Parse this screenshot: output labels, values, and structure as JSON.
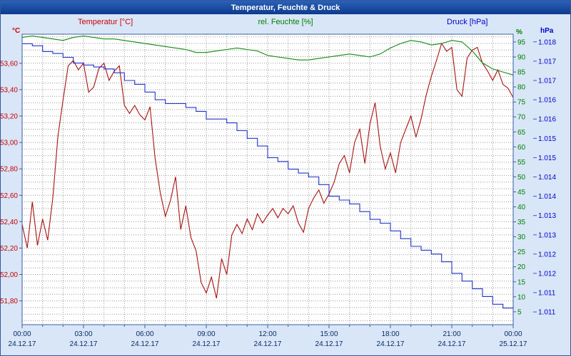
{
  "window": {
    "title": "Temperatur, Feuchte & Druck"
  },
  "legend": {
    "temperature": "Temperatur [°C]",
    "humidity": "rel. Feuchte [%]",
    "pressure": "Druck [hPa]"
  },
  "units": {
    "temperature": "°C",
    "humidity": "%",
    "pressure": "hPa"
  },
  "colors": {
    "background": "#d9e6f7",
    "titlebar": "#0e3a8c",
    "plot_background": "#ffffff",
    "plot_border": "#3a5fa0",
    "grid": "#9a9a9a",
    "temperature": "#aa1111",
    "humidity": "#0f8a0f",
    "pressure": "#2233cc",
    "x_labels": "#0a2a66"
  },
  "chart_data": {
    "type": "line",
    "title": "Temperatur, Feuchte & Druck",
    "x_axis": {
      "range_hours": [
        0,
        24
      ],
      "minor_gridline_every_hours": 1,
      "major_tick_hours": [
        0,
        3,
        6,
        9,
        12,
        15,
        18,
        21,
        24
      ],
      "tick_times": [
        "00:00",
        "03:00",
        "06:00",
        "09:00",
        "12:00",
        "15:00",
        "18:00",
        "21:00",
        "00:00"
      ],
      "tick_dates": [
        "24.12.17",
        "24.12.17",
        "24.12.17",
        "24.12.17",
        "24.12.17",
        "24.12.17",
        "24.12.17",
        "24.12.17",
        "25.12.17"
      ]
    },
    "y_axes": {
      "temperature": {
        "unit": "°C",
        "color": "#cc0000",
        "range": [
          51.62,
          53.82
        ],
        "minor_gridline_step": 0.05,
        "tick_values": [
          53.6,
          53.4,
          53.2,
          53.0,
          52.8,
          52.6,
          52.4,
          52.2,
          52.0,
          51.8
        ],
        "tick_labels": [
          "53,60",
          "53,40",
          "53,20",
          "53,00",
          "52,80",
          "52,60",
          "52,40",
          "52,20",
          "52,00",
          "51,80"
        ]
      },
      "humidity": {
        "unit": "%",
        "color": "#008000",
        "range": [
          0.7,
          97.6
        ],
        "tick_values": [
          95,
          90,
          85,
          80,
          75,
          70,
          65,
          60,
          55,
          50,
          45,
          40,
          35,
          30,
          25,
          20,
          15,
          10,
          5
        ],
        "tick_labels": [
          "95",
          "90",
          "85",
          "80",
          "75",
          "70",
          "65",
          "60",
          "55",
          "50",
          "45",
          "40",
          "35",
          "30",
          "25",
          "20",
          "15",
          "10",
          "5"
        ]
      },
      "pressure": {
        "unit": "hPa",
        "color": "#0000cc",
        "range": [
          1.01067,
          1.0182
        ],
        "tick_values": [
          1.018,
          1.0175,
          1.017,
          1.0165,
          1.016,
          1.0155,
          1.015,
          1.0145,
          1.014,
          1.0135,
          1.013,
          1.0125,
          1.012,
          1.0115,
          1.011
        ],
        "tick_labels": [
          "1.018",
          "1.017",
          "1.017",
          "1.016",
          "1.016",
          "1.015",
          "1.015",
          "1.014",
          "1.014",
          "1.013",
          "1.013",
          "1.012",
          "1.012",
          "1.011",
          "1.011"
        ]
      }
    },
    "series": [
      {
        "name": "Temperatur",
        "axis": "temperature",
        "color": "#aa1111",
        "start_hour": 0,
        "interval_hours": 0.25,
        "mode": "linear",
        "values": [
          52.38,
          52.2,
          52.55,
          52.22,
          52.42,
          52.26,
          52.58,
          53.05,
          53.32,
          53.58,
          53.62,
          53.55,
          53.6,
          53.38,
          53.42,
          53.56,
          53.6,
          53.47,
          53.54,
          53.58,
          53.28,
          53.22,
          53.28,
          53.21,
          53.17,
          53.27,
          52.88,
          52.62,
          52.44,
          52.56,
          52.74,
          52.34,
          52.52,
          52.28,
          52.18,
          51.94,
          51.86,
          51.98,
          51.82,
          52.12,
          52.0,
          52.3,
          52.38,
          52.31,
          52.42,
          52.34,
          52.46,
          52.39,
          52.45,
          52.5,
          52.43,
          52.5,
          52.46,
          52.52,
          52.39,
          52.32,
          52.5,
          52.58,
          52.64,
          52.54,
          52.61,
          52.7,
          52.84,
          52.9,
          52.77,
          53.0,
          53.1,
          52.84,
          53.14,
          53.3,
          52.97,
          52.8,
          52.92,
          52.77,
          53.0,
          53.1,
          53.2,
          53.04,
          53.18,
          53.36,
          53.5,
          53.62,
          53.75,
          53.69,
          53.72,
          53.4,
          53.35,
          53.64,
          53.7,
          53.72,
          53.6,
          53.54,
          53.47,
          53.55,
          53.44,
          53.41,
          53.34
        ]
      },
      {
        "name": "rel. Feuchte",
        "axis": "humidity",
        "color": "#0f8a0f",
        "start_hour": 0,
        "interval_hours": 0.5,
        "mode": "linear",
        "values": [
          96.5,
          97,
          96.5,
          96,
          95.5,
          96.5,
          97,
          96.5,
          96,
          96,
          95.5,
          95,
          94.5,
          94,
          93.5,
          93,
          92.5,
          91.5,
          91.5,
          92,
          92.5,
          93,
          92.5,
          92,
          90.5,
          90,
          89.5,
          89,
          89,
          89.5,
          90,
          90.5,
          91,
          90.5,
          90,
          91,
          93,
          94.5,
          95.5,
          95,
          94,
          94.5,
          95.5,
          95,
          92,
          88,
          86,
          85,
          84
        ]
      },
      {
        "name": "Druck",
        "axis": "pressure",
        "color": "#2233cc",
        "start_hour": 0,
        "interval_hours": 0.5,
        "mode": "step",
        "values": [
          1.01795,
          1.0179,
          1.01775,
          1.0177,
          1.0176,
          1.01745,
          1.0174,
          1.01735,
          1.0173,
          1.0172,
          1.017,
          1.0169,
          1.0167,
          1.0165,
          1.0164,
          1.0164,
          1.0163,
          1.0162,
          1.016,
          1.016,
          1.0159,
          1.0157,
          1.0155,
          1.0153,
          1.015,
          1.0149,
          1.0147,
          1.0146,
          1.0145,
          1.0143,
          1.014,
          1.0139,
          1.0138,
          1.0136,
          1.0134,
          1.0133,
          1.0131,
          1.0129,
          1.0127,
          1.0126,
          1.0125,
          1.0123,
          1.012,
          1.0118,
          1.0116,
          1.0114,
          1.0112,
          1.0111,
          1.01115
        ]
      }
    ]
  }
}
